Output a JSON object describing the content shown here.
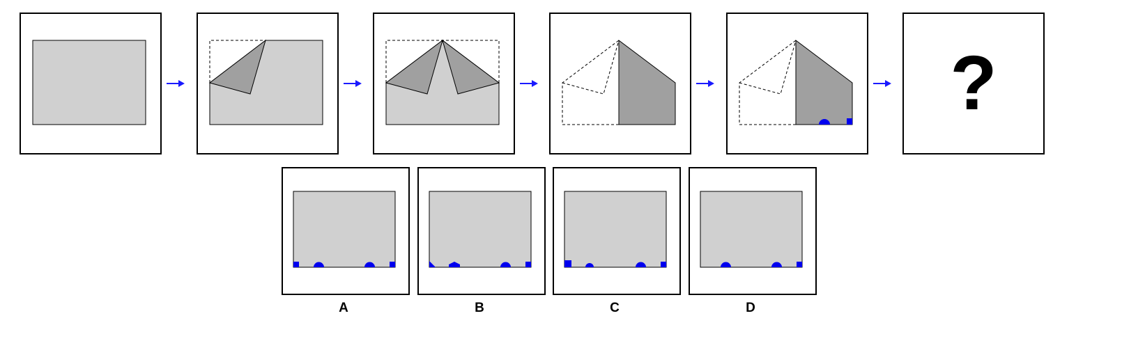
{
  "puzzle": {
    "question_mark": "?",
    "sequence_steps": [
      {
        "step": 1,
        "state": "unfolded-sheet"
      },
      {
        "step": 2,
        "state": "left-corner-folded"
      },
      {
        "step": 3,
        "state": "both-corners-folded"
      },
      {
        "step": 4,
        "state": "folded-in-half"
      },
      {
        "step": 5,
        "state": "holes-punched"
      },
      {
        "step": 6,
        "state": "unknown"
      }
    ],
    "options": [
      {
        "label": "A"
      },
      {
        "label": "B"
      },
      {
        "label": "C"
      },
      {
        "label": "D"
      }
    ]
  },
  "colors": {
    "paper": "#d0d0d0",
    "folded_flap": "#a0a0a0",
    "hole": "#0000ee",
    "arrow": "#1a1aff",
    "outline": "#000000"
  }
}
